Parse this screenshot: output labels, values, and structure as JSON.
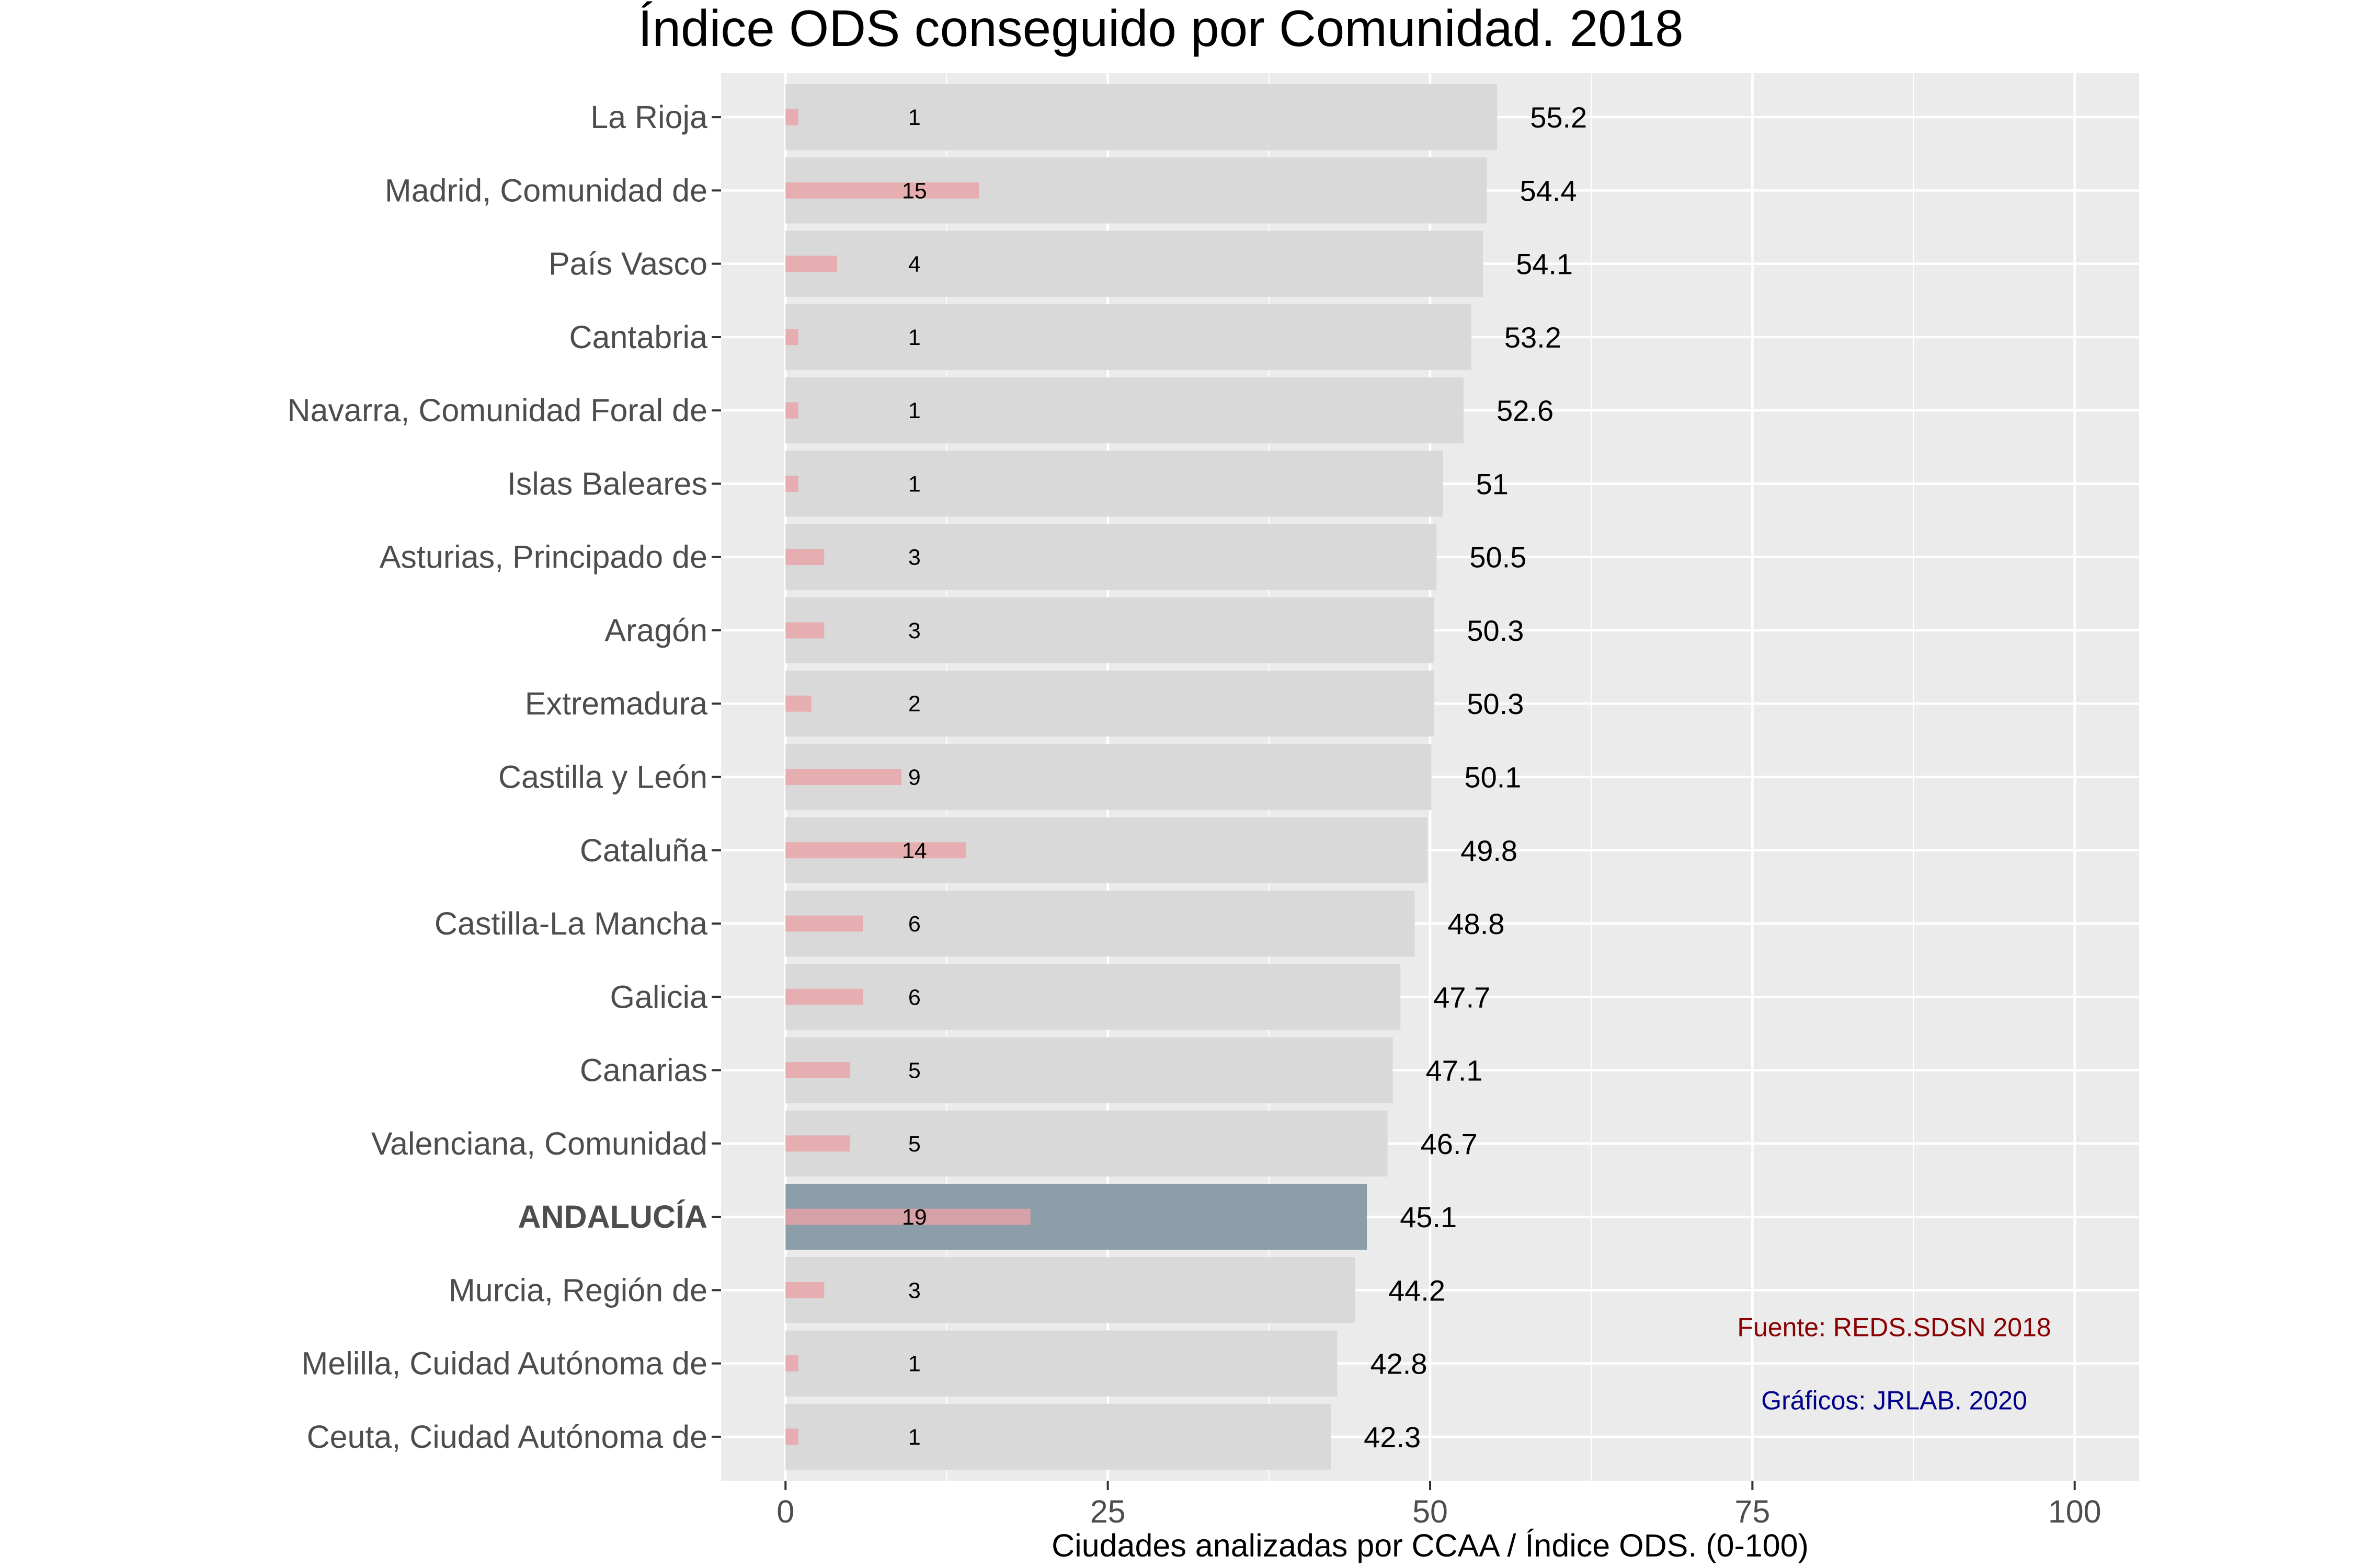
{
  "chart_data": {
    "type": "bar",
    "orientation": "horizontal",
    "title": "Índice ODS conseguido por Comunidad. 2018",
    "xlabel": "Ciudades analizadas por CCAA / Índice ODS. (0-100)",
    "xlim": [
      -5,
      105
    ],
    "x_ticks": [
      0,
      25,
      50,
      75,
      100
    ],
    "grid": true,
    "categories": [
      "La Rioja",
      "Madrid, Comunidad de",
      "País Vasco",
      "Cantabria",
      "Navarra, Comunidad Foral de",
      "Islas Baleares",
      "Asturias, Principado de",
      "Aragón",
      "Extremadura",
      "Castilla y León",
      "Cataluña",
      "Castilla-La Mancha",
      "Galicia",
      "Canarias",
      "Valenciana, Comunidad",
      "ANDALUCÍA",
      "Murcia, Región de",
      "Melilla, Cuidad Autónoma de",
      "Ceuta, Ciudad Autónoma de"
    ],
    "highlight_category": "ANDALUCÍA",
    "series": [
      {
        "name": "",
        "values": [
          55.2,
          54.4,
          54.1,
          53.2,
          52.6,
          51,
          50.5,
          50.3,
          50.3,
          50.1,
          49.8,
          48.8,
          47.7,
          47.1,
          46.7,
          45.1,
          44.2,
          42.8,
          42.3
        ],
        "value_labels": [
          "55.2",
          "54.4",
          "54.1",
          "53.2",
          "52.6",
          "51",
          "50.5",
          "50.3",
          "50.3",
          "50.1",
          "49.8",
          "48.8",
          "47.7",
          "47.1",
          "46.7",
          "45.1",
          "44.2",
          "42.8",
          "42.3"
        ],
        "color": "#d9d9d9",
        "highlight_color": "#8b9ea9"
      },
      {
        "name": "",
        "values": [
          1,
          15,
          4,
          1,
          1,
          1,
          3,
          3,
          2,
          9,
          14,
          6,
          6,
          5,
          5,
          19,
          3,
          1,
          1
        ],
        "value_labels": [
          "1",
          "15",
          "4",
          "1",
          "1",
          "1",
          "3",
          "3",
          "2",
          "9",
          "14",
          "6",
          "6",
          "5",
          "5",
          "19",
          "3",
          "1",
          "1"
        ],
        "color": "#e8a3a6"
      }
    ],
    "count_label_x": 10,
    "annotations": [
      {
        "text": "Fuente: REDS.SDSN 2018",
        "color": "#8b0000",
        "x": 86,
        "y_index": 16.5
      },
      {
        "text": "Gráficos: JRLAB. 2020",
        "color": "#00008b",
        "x": 86,
        "y_index": 17.5
      }
    ],
    "colors": {
      "panel_bg": "#ebebeb",
      "grid_major": "#ffffff"
    }
  }
}
